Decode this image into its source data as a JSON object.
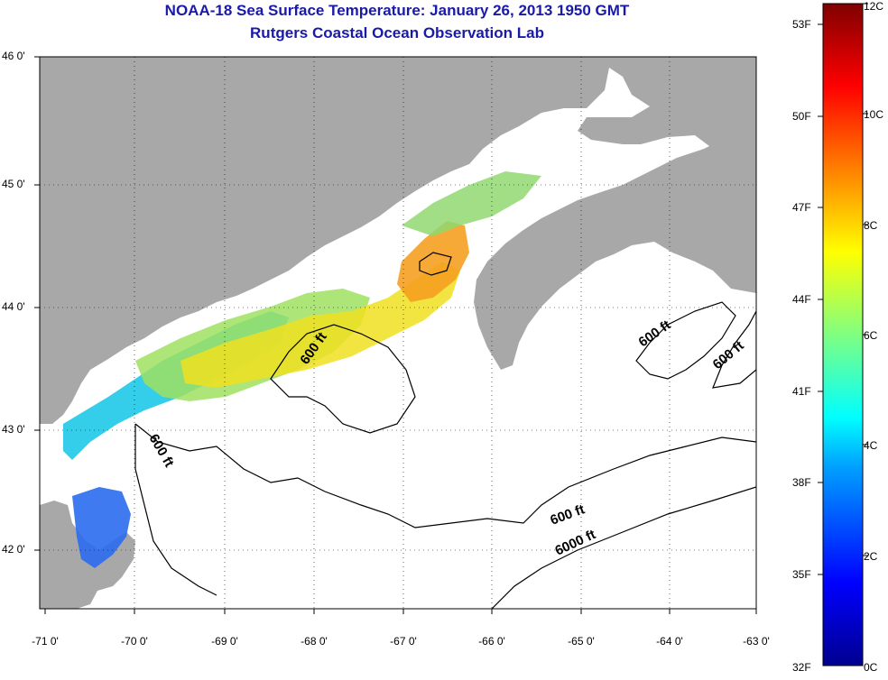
{
  "title": {
    "line1": "NOAA-18 Sea Surface Temperature:  January 26, 2013 1950 GMT",
    "line2": "Rutgers Coastal Ocean Observation Lab"
  },
  "map": {
    "lat_ticks": [
      "46 0'",
      "45 0'",
      "44 0'",
      "43 0'",
      "42 0'"
    ],
    "lon_ticks": [
      "-71 0'",
      "-70 0'",
      "-69 0'",
      "-68 0'",
      "-67 0'",
      "-66 0'",
      "-65 0'",
      "-64 0'",
      "-63 0'"
    ],
    "lat_range": [
      41.5,
      46.0
    ],
    "lon_range": [
      -71.0,
      -63.0
    ],
    "grid": "dotted",
    "land_color": "#a8a8a8",
    "contour_labels": [
      "600 ft",
      "600 ft",
      "600 ft",
      "600 ft",
      "600 ft",
      "6000 ft"
    ]
  },
  "colorbar": {
    "fahrenheit_ticks": [
      "53F",
      "50F",
      "47F",
      "44F",
      "41F",
      "38F",
      "35F",
      "32F"
    ],
    "celsius_ticks": [
      "12C",
      "10C",
      "8C",
      "6C",
      "4C",
      "2C",
      "0C"
    ],
    "colors": [
      "#00008f",
      "#0000ff",
      "#00a0ff",
      "#00ffff",
      "#80ff80",
      "#ffff00",
      "#ff8000",
      "#ff0000",
      "#800000"
    ]
  }
}
